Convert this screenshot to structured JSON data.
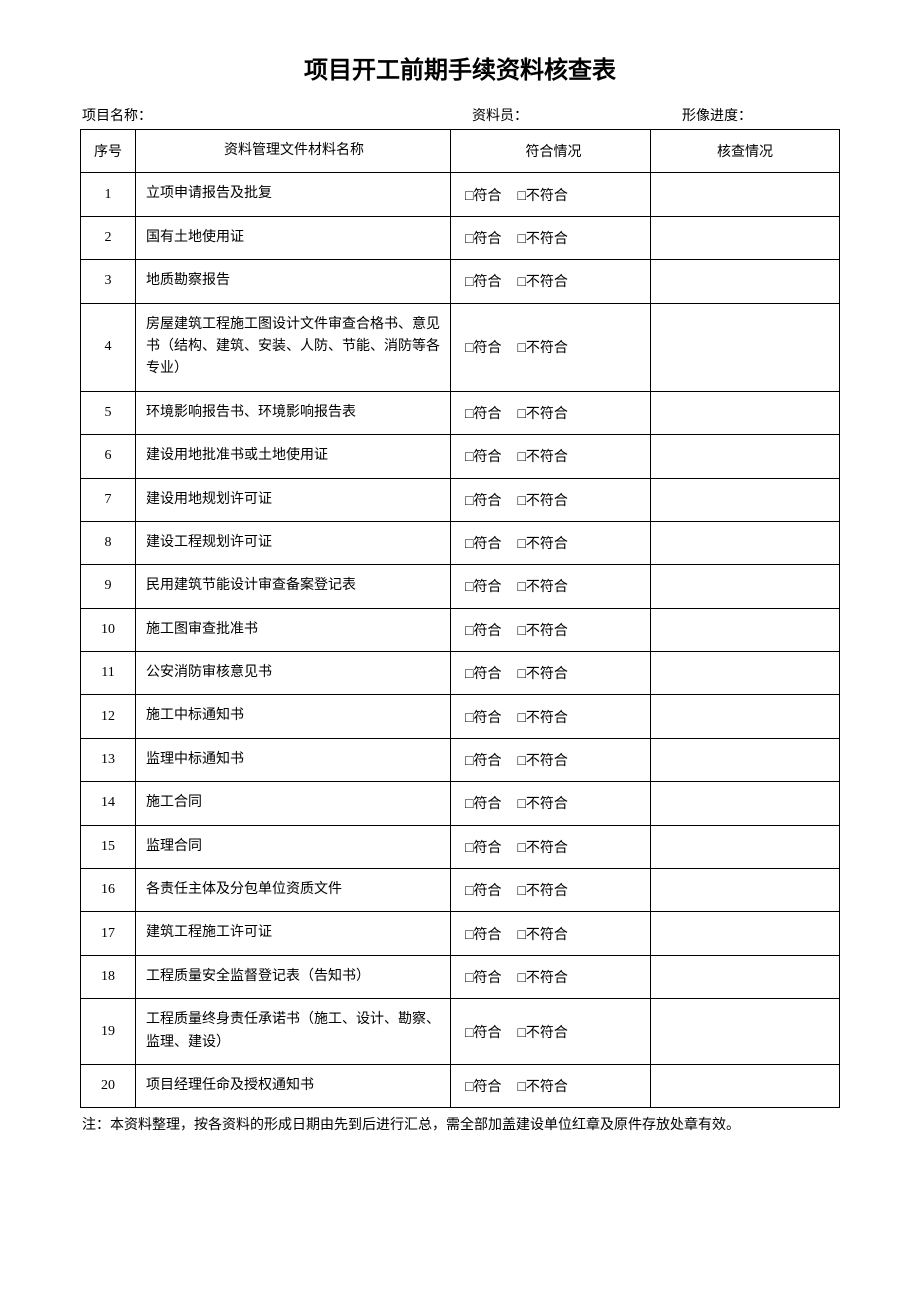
{
  "title": "项目开工前期手续资料核查表",
  "meta": {
    "project_label": "项目名称：",
    "clerk_label": "资料员：",
    "progress_label": "形像进度："
  },
  "headers": {
    "num": "序号",
    "name": "资料管理文件材料名称",
    "status": "符合情况",
    "check": "核查情况"
  },
  "status_labels": {
    "yes": "□符合",
    "no": "□不符合"
  },
  "rows": [
    {
      "num": "1",
      "name": "立项申请报告及批复"
    },
    {
      "num": "2",
      "name": "国有土地使用证"
    },
    {
      "num": "3",
      "name": "地质勘察报告"
    },
    {
      "num": "4",
      "name": "房屋建筑工程施工图设计文件审查合格书、意见书（结构、建筑、安装、人防、节能、消防等各专业）"
    },
    {
      "num": "5",
      "name": "环境影响报告书、环境影响报告表"
    },
    {
      "num": "6",
      "name": "建设用地批准书或土地使用证"
    },
    {
      "num": "7",
      "name": "建设用地规划许可证"
    },
    {
      "num": "8",
      "name": "建设工程规划许可证"
    },
    {
      "num": "9",
      "name": "民用建筑节能设计审查备案登记表"
    },
    {
      "num": "10",
      "name": "施工图审查批准书"
    },
    {
      "num": "11",
      "name": "公安消防审核意见书"
    },
    {
      "num": "12",
      "name": "施工中标通知书"
    },
    {
      "num": "13",
      "name": "监理中标通知书"
    },
    {
      "num": "14",
      "name": "施工合同"
    },
    {
      "num": "15",
      "name": "监理合同"
    },
    {
      "num": "16",
      "name": "各责任主体及分包单位资质文件"
    },
    {
      "num": "17",
      "name": "建筑工程施工许可证"
    },
    {
      "num": "18",
      "name": "工程质量安全监督登记表（告知书）"
    },
    {
      "num": "19",
      "name": "工程质量终身责任承诺书（施工、设计、勘察、监理、建设）"
    },
    {
      "num": "20",
      "name": "项目经理任命及授权通知书"
    }
  ],
  "footnote": "注：本资料整理，按各资料的形成日期由先到后进行汇总，需全部加盖建设单位红章及原件存放处章有效。"
}
